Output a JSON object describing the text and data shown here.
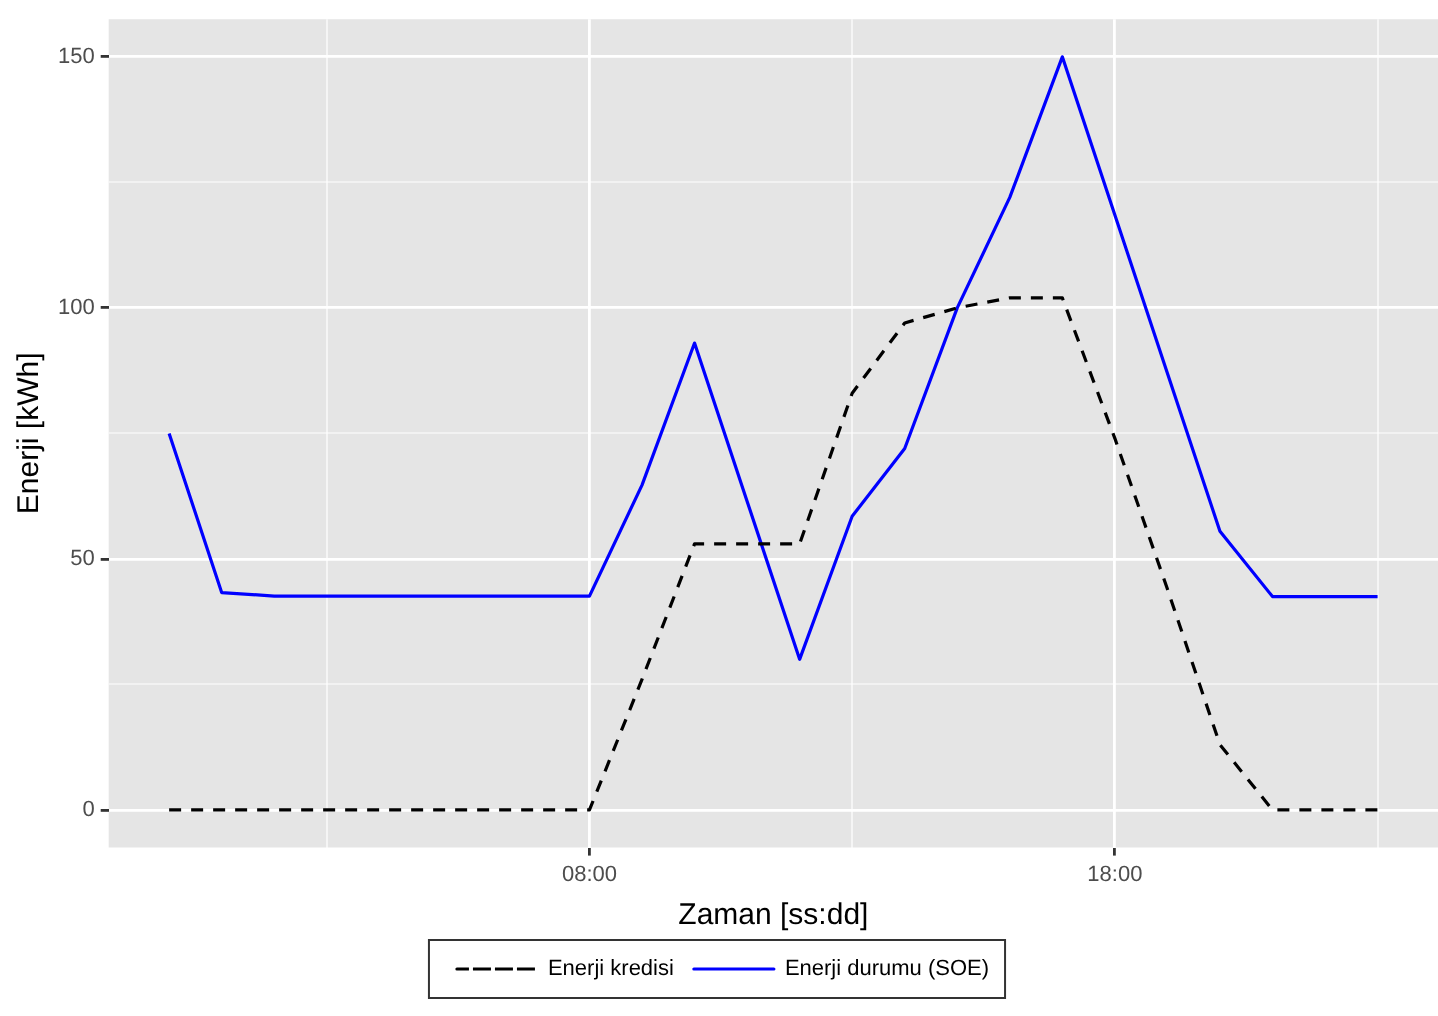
{
  "chart_data": {
    "type": "line",
    "xlabel": "Zaman [ss:dd]",
    "ylabel": "Enerji [kWh]",
    "x": [
      0,
      1,
      2,
      3,
      4,
      5,
      6,
      7,
      8,
      9,
      10,
      11,
      12,
      13,
      14,
      15,
      16,
      17,
      18,
      19,
      20,
      21,
      22,
      23
    ],
    "series": [
      {
        "name": "Enerji kredisi",
        "color": "#000000",
        "line_style": "dashed",
        "values": [
          0,
          0,
          0,
          0,
          0,
          0,
          0,
          0,
          0,
          26,
          53,
          53,
          53,
          83,
          97,
          100,
          102,
          102,
          74,
          44,
          13,
          0,
          0,
          0
        ]
      },
      {
        "name": "Enerji durumu (SOE)",
        "color": "#0000ff",
        "line_style": "solid",
        "values": [
          75,
          43.3,
          42.6,
          42.6,
          42.6,
          42.6,
          42.6,
          42.6,
          42.6,
          64.7,
          93,
          61.5,
          30,
          58.5,
          72,
          100,
          122,
          150,
          118.5,
          87,
          55.5,
          42.5,
          42.5,
          42.5
        ]
      }
    ],
    "xlim": [
      -1.15,
      24.15
    ],
    "xticks": [
      {
        "value": 3,
        "label": null
      },
      {
        "value": 8,
        "label": "08:00"
      },
      {
        "value": 13,
        "label": null
      },
      {
        "value": 18,
        "label": "18:00"
      },
      {
        "value": 23,
        "label": null
      }
    ],
    "ylim": [
      -7.5,
      157.5
    ],
    "yticks": [
      0,
      {
        "value": 25,
        "label": null
      },
      50,
      {
        "value": 75,
        "label": null
      },
      100,
      {
        "value": 125,
        "label": null
      },
      150
    ],
    "grid": true,
    "legend": "bottom",
    "marker": "none"
  }
}
